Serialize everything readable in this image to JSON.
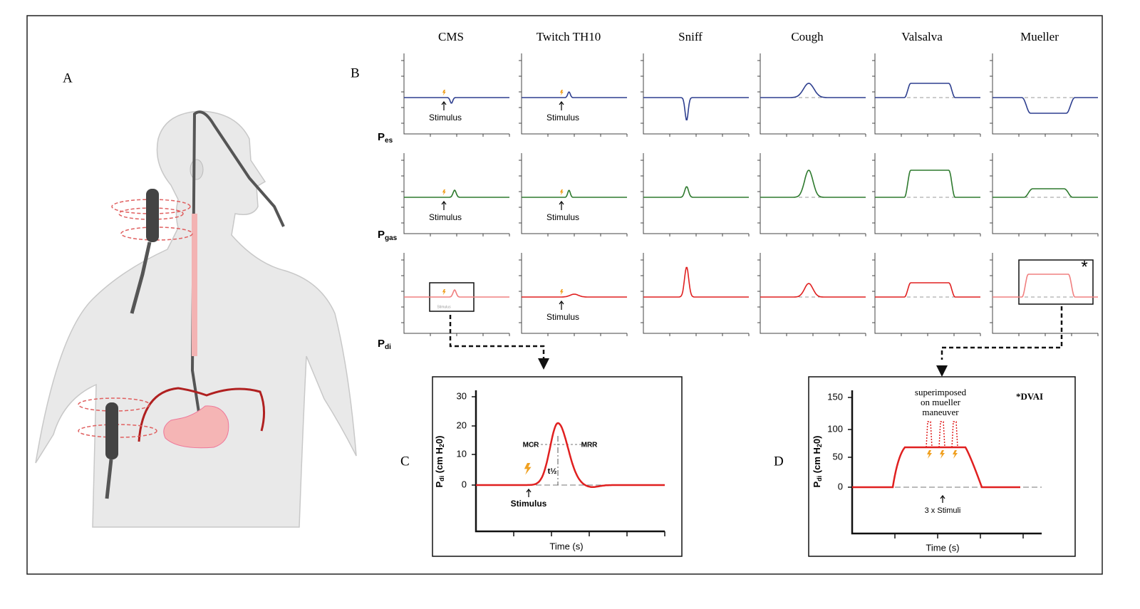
{
  "panels": {
    "a": "A",
    "b": "B",
    "c": "C",
    "d": "D"
  },
  "columns": [
    "CMS",
    "Twitch TH10",
    "Sniff",
    "Cough",
    "Valsalva",
    "Mueller"
  ],
  "rows": [
    {
      "symbol": "P",
      "subscript": "es"
    },
    {
      "symbol": "P",
      "subscript": "gas"
    },
    {
      "symbol": "P",
      "subscript": "di"
    }
  ],
  "stimulus": "Stimulus",
  "asterisk": "*",
  "panel_c": {
    "yticks": [
      "0",
      "10",
      "20",
      "30"
    ],
    "y_label": [
      "P",
      "di",
      " (cm H",
      "2",
      "0)"
    ],
    "x_label": "Time (s)",
    "mcr": "MCR",
    "mrr": "MRR",
    "half_time": "t½",
    "stimulus": "Stimulus"
  },
  "panel_d": {
    "yticks": [
      "0",
      "50",
      "100",
      "150"
    ],
    "y_label": [
      "P",
      "di",
      " (cm H",
      "2",
      "0)"
    ],
    "x_label": "Time (s)",
    "note": [
      "superimposed",
      "on mueller",
      "maneuver"
    ],
    "tag": "*DVAI",
    "stimuli": "3 x Stimuli"
  }
}
